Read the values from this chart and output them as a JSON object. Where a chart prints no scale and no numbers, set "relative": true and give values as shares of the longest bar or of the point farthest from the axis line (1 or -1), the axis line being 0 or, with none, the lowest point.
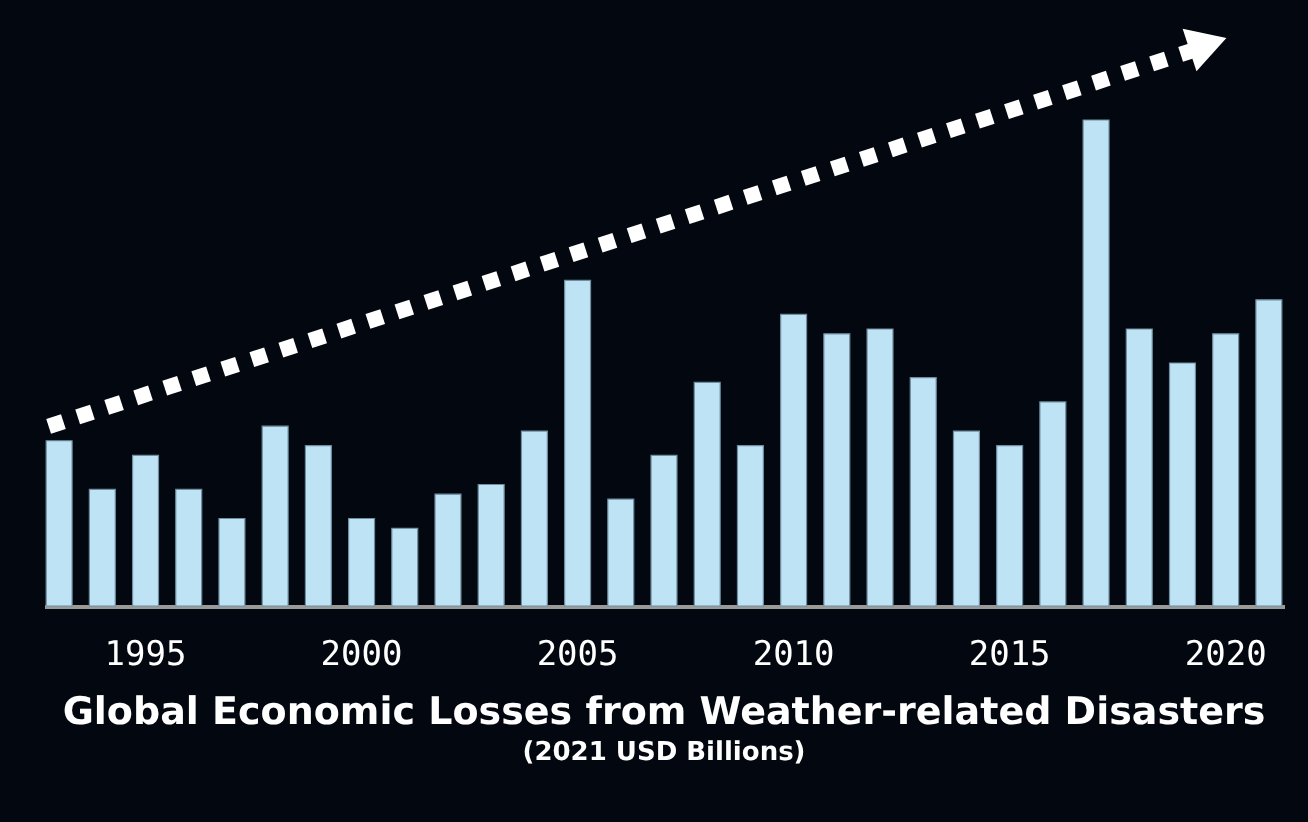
{
  "chart_data": {
    "type": "bar",
    "title": "Global Economic Losses from Weather-related Disasters",
    "subtitle": "(2021 USD Billions)",
    "categories": [
      null,
      null,
      "1995",
      null,
      null,
      null,
      null,
      "2000",
      null,
      null,
      null,
      null,
      "2005",
      null,
      null,
      null,
      null,
      "2010",
      null,
      null,
      null,
      null,
      "2015",
      null,
      null,
      null,
      null,
      "2020",
      null
    ],
    "values": [
      0.34,
      0.24,
      0.31,
      0.24,
      0.18,
      0.37,
      0.33,
      0.18,
      0.16,
      0.23,
      0.25,
      0.36,
      0.67,
      0.22,
      0.31,
      0.46,
      0.33,
      0.6,
      0.56,
      0.57,
      0.47,
      0.36,
      0.33,
      0.42,
      1,
      0.57,
      0.5,
      0.56,
      0.63
    ],
    "color": "#bde3f5",
    "relative": true,
    "grid": false
  }
}
